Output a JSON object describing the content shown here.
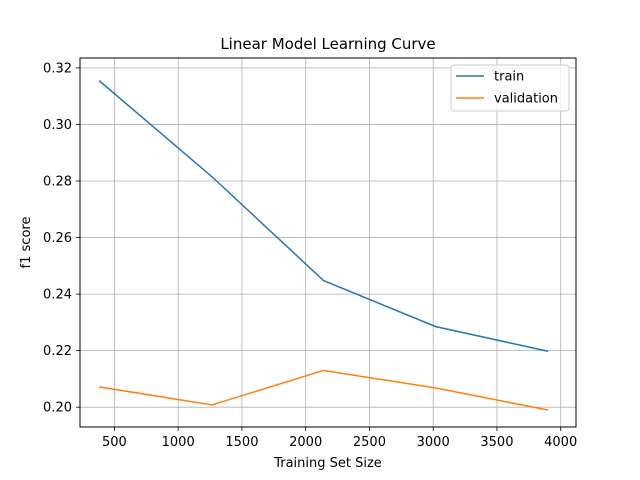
{
  "chart_data": {
    "type": "line",
    "title": "Linear Model Learning Curve",
    "xlabel": "Training Set Size",
    "ylabel": "f1 score",
    "xlim": [
      230,
      4120
    ],
    "ylim": [
      0.193,
      0.3235
    ],
    "xticks": [
      500,
      1000,
      1500,
      2000,
      2500,
      3000,
      3500,
      4000
    ],
    "yticks": [
      0.2,
      0.22,
      0.24,
      0.26,
      0.28,
      0.3,
      0.32
    ],
    "ytick_labels": [
      "0.20",
      "0.22",
      "0.24",
      "0.26",
      "0.28",
      "0.30",
      "0.32"
    ],
    "grid": true,
    "legend_position": "top-right",
    "x": [
      380,
      1265,
      2140,
      3020,
      3900
    ],
    "series": [
      {
        "name": "train",
        "color": "#1f77b4",
        "values": [
          0.3155,
          0.2815,
          0.2448,
          0.2285,
          0.2198
        ]
      },
      {
        "name": "validation",
        "color": "#ff7f0e",
        "values": [
          0.2072,
          0.2008,
          0.213,
          0.2068,
          0.199
        ]
      }
    ]
  }
}
